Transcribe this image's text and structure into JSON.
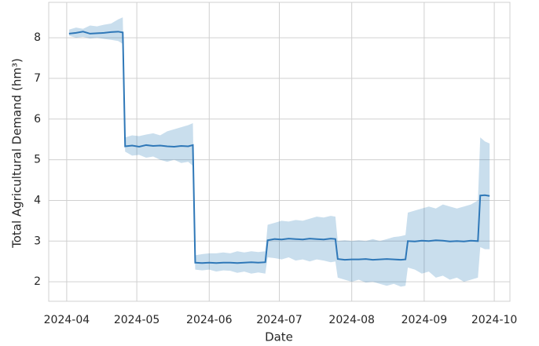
{
  "chart_data": {
    "type": "line",
    "xlabel": "Date",
    "ylabel": "Total Agricultural Demand (hm³)",
    "x": [
      1,
      4,
      7,
      10,
      13,
      16,
      19,
      22,
      24,
      25,
      28,
      31,
      34,
      37,
      40,
      43,
      46,
      49,
      52,
      54,
      55,
      58,
      61,
      64,
      67,
      70,
      73,
      76,
      79,
      82,
      85,
      86,
      89,
      92,
      95,
      98,
      101,
      104,
      107,
      110,
      113,
      115,
      116,
      119,
      122,
      125,
      128,
      131,
      134,
      137,
      140,
      143,
      145,
      146,
      149,
      152,
      155,
      158,
      161,
      164,
      167,
      170,
      173,
      176,
      177,
      179,
      181
    ],
    "values": [
      8.1,
      8.12,
      8.15,
      8.1,
      8.11,
      8.12,
      8.14,
      8.15,
      8.13,
      5.33,
      5.35,
      5.32,
      5.36,
      5.34,
      5.35,
      5.33,
      5.32,
      5.34,
      5.33,
      5.36,
      2.47,
      2.46,
      2.47,
      2.46,
      2.47,
      2.47,
      2.46,
      2.47,
      2.48,
      2.47,
      2.48,
      3.02,
      3.05,
      3.04,
      3.06,
      3.05,
      3.04,
      3.06,
      3.05,
      3.04,
      3.06,
      3.05,
      2.56,
      2.54,
      2.55,
      2.55,
      2.56,
      2.54,
      2.55,
      2.56,
      2.55,
      2.54,
      2.55,
      3.0,
      2.99,
      3.01,
      3.0,
      3.02,
      3.01,
      2.99,
      3.0,
      2.99,
      3.01,
      3.0,
      4.12,
      4.13,
      4.11
    ],
    "lower": [
      8.05,
      8.0,
      8.02,
      7.98,
      8.0,
      7.97,
      7.95,
      7.92,
      7.85,
      5.2,
      5.1,
      5.12,
      5.05,
      5.08,
      5.0,
      4.95,
      5.0,
      4.92,
      4.95,
      4.85,
      2.3,
      2.28,
      2.3,
      2.25,
      2.28,
      2.27,
      2.22,
      2.25,
      2.2,
      2.23,
      2.2,
      2.6,
      2.58,
      2.55,
      2.6,
      2.52,
      2.55,
      2.5,
      2.55,
      2.52,
      2.48,
      2.5,
      2.1,
      2.05,
      2.0,
      2.05,
      1.98,
      2.0,
      1.95,
      1.9,
      1.95,
      1.88,
      1.9,
      2.35,
      2.3,
      2.2,
      2.25,
      2.1,
      2.15,
      2.05,
      2.1,
      2.0,
      2.05,
      2.1,
      2.85,
      2.8,
      2.8
    ],
    "upper": [
      8.2,
      8.25,
      8.22,
      8.3,
      8.28,
      8.32,
      8.35,
      8.45,
      8.5,
      5.55,
      5.6,
      5.58,
      5.62,
      5.65,
      5.6,
      5.7,
      5.75,
      5.8,
      5.85,
      5.9,
      2.65,
      2.68,
      2.7,
      2.7,
      2.72,
      2.7,
      2.75,
      2.72,
      2.75,
      2.73,
      2.75,
      3.4,
      3.45,
      3.5,
      3.48,
      3.52,
      3.5,
      3.55,
      3.6,
      3.58,
      3.62,
      3.6,
      3.0,
      3.02,
      3.0,
      3.02,
      3.0,
      3.05,
      3.0,
      3.05,
      3.1,
      3.12,
      3.15,
      3.7,
      3.75,
      3.8,
      3.85,
      3.8,
      3.9,
      3.85,
      3.8,
      3.85,
      3.9,
      4.0,
      5.55,
      5.45,
      5.4
    ],
    "color": "#2f78b8",
    "band_color": "#1f77b4",
    "xlim": [
      -7.7,
      189.7
    ],
    "xticks": [
      {
        "value": 0,
        "label": "2024-04"
      },
      {
        "value": 30,
        "label": "2024-05"
      },
      {
        "value": 61,
        "label": "2024-06"
      },
      {
        "value": 91,
        "label": "2024-07"
      },
      {
        "value": 122,
        "label": "2024-08"
      },
      {
        "value": 153,
        "label": "2024-09"
      },
      {
        "value": 183,
        "label": "2024-10"
      }
    ],
    "ylim": [
      1.52,
      8.87
    ],
    "yticks": [
      2,
      3,
      4,
      5,
      6,
      7,
      8
    ],
    "grid": true
  }
}
